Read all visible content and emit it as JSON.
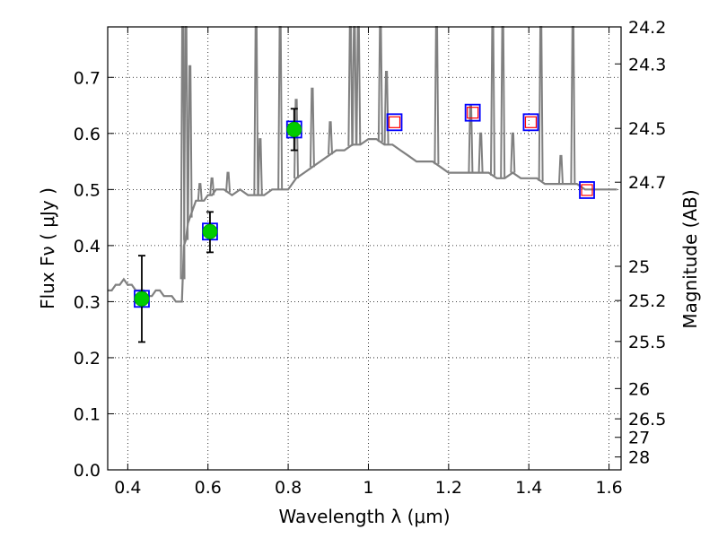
{
  "chart_data": {
    "type": "line",
    "title": "",
    "xlabel": "Wavelength  λ (μm)",
    "ylabel": "Flux  Fν  ( μJy )",
    "ylabel_right": "Magnitude (AB)",
    "xlim": [
      0.35,
      1.63
    ],
    "ylim": [
      0.0,
      0.79
    ],
    "grid": true,
    "x_ticks": [
      0.4,
      0.6,
      0.8,
      1.0,
      1.2,
      1.4,
      1.6
    ],
    "x_tick_labels": [
      "0.4",
      "0.6",
      "0.8",
      "1",
      "1.2",
      "1.4",
      "1.6"
    ],
    "y_ticks": [
      0.0,
      0.1,
      0.2,
      0.3,
      0.4,
      0.5,
      0.6,
      0.7
    ],
    "y_tick_labels": [
      "0.0",
      "0.1",
      "0.2",
      "0.3",
      "0.4",
      "0.5",
      "0.6",
      "0.7"
    ],
    "right_ticks": [
      {
        "flux": 0.79,
        "label": "24.2"
      },
      {
        "flux": 0.724,
        "label": "24.3"
      },
      {
        "flux": 0.609,
        "label": "24.5"
      },
      {
        "flux": 0.513,
        "label": "24.7"
      },
      {
        "flux": 0.363,
        "label": "25"
      },
      {
        "flux": 0.302,
        "label": "25.2"
      },
      {
        "flux": 0.229,
        "label": "25.5"
      },
      {
        "flux": 0.145,
        "label": "26"
      },
      {
        "flux": 0.091,
        "label": "26.5"
      },
      {
        "flux": 0.058,
        "label": "27"
      },
      {
        "flux": 0.023,
        "label": "28"
      }
    ],
    "series": [
      {
        "name": "model_spectrum",
        "color": "#808080",
        "x": [
          0.35,
          0.36,
          0.37,
          0.38,
          0.39,
          0.4,
          0.41,
          0.42,
          0.43,
          0.44,
          0.45,
          0.46,
          0.47,
          0.48,
          0.49,
          0.5,
          0.51,
          0.52,
          0.53,
          0.535,
          0.54,
          0.545,
          0.55,
          0.56,
          0.57,
          0.58,
          0.59,
          0.6,
          0.61,
          0.62,
          0.64,
          0.66,
          0.68,
          0.7,
          0.72,
          0.74,
          0.76,
          0.78,
          0.8,
          0.82,
          0.84,
          0.86,
          0.88,
          0.9,
          0.92,
          0.94,
          0.96,
          0.98,
          1.0,
          1.02,
          1.04,
          1.06,
          1.08,
          1.1,
          1.12,
          1.14,
          1.16,
          1.18,
          1.2,
          1.22,
          1.24,
          1.26,
          1.28,
          1.3,
          1.32,
          1.34,
          1.36,
          1.38,
          1.4,
          1.42,
          1.44,
          1.46,
          1.48,
          1.5,
          1.52,
          1.54,
          1.56,
          1.58,
          1.6,
          1.62
        ],
        "y": [
          0.32,
          0.32,
          0.33,
          0.33,
          0.34,
          0.33,
          0.33,
          0.32,
          0.32,
          0.32,
          0.31,
          0.31,
          0.32,
          0.32,
          0.31,
          0.31,
          0.31,
          0.3,
          0.3,
          0.3,
          0.4,
          0.41,
          0.44,
          0.46,
          0.48,
          0.48,
          0.48,
          0.49,
          0.49,
          0.5,
          0.5,
          0.49,
          0.5,
          0.49,
          0.49,
          0.49,
          0.5,
          0.5,
          0.5,
          0.52,
          0.53,
          0.54,
          0.55,
          0.56,
          0.57,
          0.57,
          0.58,
          0.58,
          0.59,
          0.59,
          0.58,
          0.58,
          0.57,
          0.56,
          0.55,
          0.55,
          0.55,
          0.54,
          0.53,
          0.53,
          0.53,
          0.53,
          0.53,
          0.53,
          0.52,
          0.52,
          0.53,
          0.52,
          0.52,
          0.52,
          0.51,
          0.51,
          0.51,
          0.51,
          0.51,
          0.5,
          0.5,
          0.5,
          0.5,
          0.5
        ]
      },
      {
        "name": "emission_lines",
        "color": "#808080",
        "peaks": [
          {
            "x": 0.537,
            "top": 0.79
          },
          {
            "x": 0.545,
            "top": 0.79
          },
          {
            "x": 0.555,
            "top": 0.72
          },
          {
            "x": 0.58,
            "top": 0.51
          },
          {
            "x": 0.61,
            "top": 0.52
          },
          {
            "x": 0.65,
            "top": 0.53
          },
          {
            "x": 0.72,
            "top": 0.79
          },
          {
            "x": 0.73,
            "top": 0.59
          },
          {
            "x": 0.78,
            "top": 0.79
          },
          {
            "x": 0.82,
            "top": 0.66
          },
          {
            "x": 0.86,
            "top": 0.68
          },
          {
            "x": 0.905,
            "top": 0.62
          },
          {
            "x": 0.955,
            "top": 0.79
          },
          {
            "x": 0.965,
            "top": 0.79
          },
          {
            "x": 0.975,
            "top": 0.79
          },
          {
            "x": 1.03,
            "top": 0.79
          },
          {
            "x": 1.045,
            "top": 0.71
          },
          {
            "x": 1.17,
            "top": 0.79
          },
          {
            "x": 1.255,
            "top": 0.65
          },
          {
            "x": 1.28,
            "top": 0.6
          },
          {
            "x": 1.31,
            "top": 0.79
          },
          {
            "x": 1.335,
            "top": 0.79
          },
          {
            "x": 1.36,
            "top": 0.6
          },
          {
            "x": 1.43,
            "top": 0.79
          },
          {
            "x": 1.48,
            "top": 0.56
          },
          {
            "x": 1.51,
            "top": 0.79
          }
        ]
      },
      {
        "name": "observed_photometry",
        "color": "#00cc00",
        "x": [
          0.435,
          0.605,
          0.815
        ],
        "y": [
          0.305,
          0.425,
          0.607
        ],
        "yerr_low": [
          0.077,
          0.037,
          0.037
        ],
        "yerr_high": [
          0.077,
          0.035,
          0.037
        ]
      },
      {
        "name": "model_photometry",
        "color": "#0000ff",
        "x": [
          0.435,
          0.605,
          0.815,
          1.065,
          1.26,
          1.405,
          1.545
        ],
        "y": [
          0.305,
          0.425,
          0.607,
          0.62,
          0.637,
          0.62,
          0.499
        ]
      },
      {
        "name": "upper_limits",
        "color": "#ff0000",
        "x": [
          1.065,
          1.26,
          1.405,
          1.545
        ],
        "y": [
          0.62,
          0.637,
          0.62,
          0.499
        ]
      }
    ]
  }
}
